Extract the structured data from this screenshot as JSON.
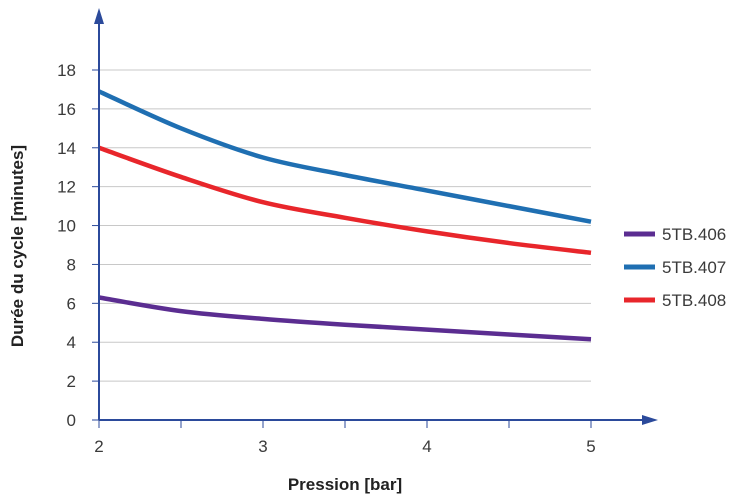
{
  "chart_data": {
    "type": "line",
    "title": "",
    "xlabel": "Pression [bar]",
    "ylabel": "Durée du cycle [minutes]",
    "xlim": [
      2,
      5
    ],
    "ylim": [
      0,
      18
    ],
    "x_ticks": [
      2,
      3,
      4,
      5
    ],
    "y_ticks": [
      0,
      2,
      4,
      6,
      8,
      10,
      12,
      14,
      16,
      18
    ],
    "grid": "horizontal",
    "legend_position": "right",
    "series": [
      {
        "name": "5TB.406",
        "color": "#5b2d91",
        "x": [
          2,
          2.5,
          3,
          3.5,
          4,
          4.5,
          5
        ],
        "values": [
          6.3,
          5.6,
          5.2,
          4.9,
          4.65,
          4.4,
          4.15
        ]
      },
      {
        "name": "5TB.407",
        "color": "#1f6fb2",
        "x": [
          2,
          2.5,
          3,
          3.5,
          4,
          4.5,
          5
        ],
        "values": [
          16.9,
          15.0,
          13.5,
          12.6,
          11.8,
          11.0,
          10.2
        ]
      },
      {
        "name": "5TB.408",
        "color": "#e8262b",
        "x": [
          2,
          2.5,
          3,
          3.5,
          4,
          4.5,
          5
        ],
        "values": [
          14.0,
          12.5,
          11.2,
          10.4,
          9.7,
          9.1,
          8.6
        ]
      }
    ]
  }
}
